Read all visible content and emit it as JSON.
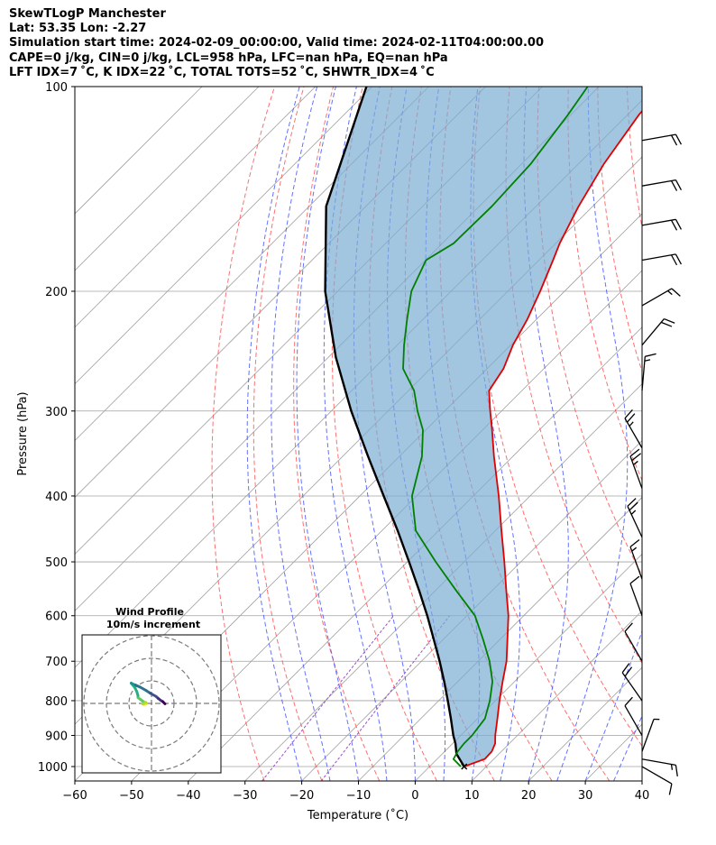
{
  "header": {
    "line1": "SkewTLogP Manchester",
    "line2": "Lat: 53.35   Lon: -2.27",
    "line3": "Simulation start time: 2024-02-09_00:00:00, Valid time: 2024-02-11T04:00:00.00",
    "line4": "CAPE=0 j/kg, CIN=0 j/kg, LCL=958 hPa, LFC=nan hPa, EQ=nan hPa",
    "line5": "LFT IDX=7 ˚C, K IDX=22 ˚C, TOTAL TOTS=52 ˚C, SHWTR_IDX=4 ˚C"
  },
  "colors": {
    "temperature": "#e00000",
    "dewpoint": "#008000",
    "parcel": "#000000",
    "cape_fill": "#7aadd3",
    "dry_adiabat": "#ff4a4a",
    "moist_adiabat": "#3b4dff",
    "mixing_ratio": "#9a4fc8",
    "isotherm": "#a0a0a0"
  },
  "chart_data": [
    {
      "type": "line",
      "title": "SkewTLogP Manchester",
      "xlabel": "Temperature (˚C)",
      "ylabel": "Pressure (hPa)",
      "xlim": [
        -60,
        40
      ],
      "ylim": [
        1050,
        100
      ],
      "yscale": "log",
      "skew": 45,
      "xticks": [
        -60,
        -50,
        -40,
        -30,
        -20,
        -10,
        0,
        10,
        20,
        30,
        40
      ],
      "yticks": [
        1000,
        900,
        800,
        700,
        600,
        500,
        400,
        300,
        200,
        100
      ],
      "series": [
        {
          "name": "Temperature",
          "p": [
            1000,
            975,
            950,
            925,
            900,
            850,
            800,
            750,
            700,
            650,
            600,
            550,
            500,
            450,
            400,
            350,
            320,
            300,
            280,
            260,
            240,
            220,
            200,
            180,
            170,
            150,
            130,
            110,
            100
          ],
          "t": [
            6.1,
            8.4,
            8.3,
            7.5,
            6.1,
            3.5,
            0.7,
            -2.1,
            -5.0,
            -8.7,
            -12.7,
            -17.6,
            -22.9,
            -28.9,
            -35.5,
            -43.3,
            -48.3,
            -52.0,
            -55.8,
            -57.1,
            -59.6,
            -61.6,
            -64.3,
            -67.5,
            -69.3,
            -72.5,
            -75.5,
            -78.0,
            -78.7
          ]
        },
        {
          "name": "Dewpoint",
          "p": [
            1000,
            975,
            950,
            925,
            900,
            850,
            800,
            750,
            700,
            650,
            600,
            550,
            500,
            450,
            400,
            350,
            320,
            300,
            280,
            260,
            240,
            220,
            200,
            180,
            170,
            150,
            130,
            110,
            100
          ],
          "t": [
            5.5,
            2.9,
            2.3,
            2.0,
            2.0,
            1.3,
            -1.0,
            -3.9,
            -8.0,
            -13.0,
            -18.6,
            -26.5,
            -35.0,
            -44.0,
            -50.8,
            -56.0,
            -60.5,
            -64.8,
            -69.0,
            -74.8,
            -78.8,
            -82.8,
            -87.0,
            -89.9,
            -88.0,
            -87.8,
            -88.4,
            -90.5,
            -92.0
          ]
        },
        {
          "name": "Parcel",
          "p": [
            1000,
            958,
            925,
            900,
            850,
            800,
            750,
            700,
            650,
            600,
            550,
            500,
            450,
            400,
            350,
            300,
            250,
            200,
            150,
            100
          ],
          "t": [
            6.1,
            2.5,
            0.5,
            -1.3,
            -4.7,
            -8.4,
            -12.4,
            -16.8,
            -21.7,
            -27.0,
            -33.0,
            -39.7,
            -47.2,
            -55.8,
            -65.5,
            -76.5,
            -88.7,
            -102.2,
            -117.0,
            -131.0
          ]
        }
      ],
      "annotations": []
    },
    {
      "type": "scatter",
      "title": "Wind Profile",
      "subtitle": "10m/s increment",
      "ring_step_ms": 10,
      "points": [
        {
          "u": 6,
          "v": -0.2
        },
        {
          "u": 5,
          "v": 0.8
        },
        {
          "u": 4,
          "v": 1.4
        },
        {
          "u": 3,
          "v": 2.2
        },
        {
          "u": 2,
          "v": 3.1
        },
        {
          "u": -0.5,
          "v": 4.5
        },
        {
          "u": -2.5,
          "v": 5.8
        },
        {
          "u": -5,
          "v": 7.2
        },
        {
          "u": -7,
          "v": 8.1
        },
        {
          "u": -8.5,
          "v": 8.7
        },
        {
          "u": -9,
          "v": 9.0
        },
        {
          "u": -7.5,
          "v": 7.2
        },
        {
          "u": -6.5,
          "v": 5.2
        },
        {
          "u": -6,
          "v": 3.4
        },
        {
          "u": -6,
          "v": 2.6
        },
        {
          "u": -3.9,
          "v": 1.0
        },
        {
          "u": -2.5,
          "v": 0.4
        },
        {
          "u": -3.9,
          "v": -0.2
        },
        {
          "u": -3.4,
          "v": -0.5
        },
        {
          "u": -2.3,
          "v": -0.3
        }
      ]
    },
    {
      "type": "barbs",
      "name": "Wind barbs",
      "p": [
        120,
        140,
        160,
        180,
        210,
        240,
        280,
        340,
        390,
        460,
        530,
        600,
        700,
        800,
        900,
        950,
        975,
        1000
      ],
      "speed_kt": [
        20,
        20,
        20,
        20,
        15,
        20,
        15,
        25,
        25,
        25,
        15,
        10,
        10,
        20,
        10,
        5,
        15,
        10
      ],
      "direction_deg": [
        80,
        80,
        80,
        80,
        60,
        40,
        5,
        330,
        340,
        335,
        340,
        340,
        330,
        325,
        330,
        20,
        100,
        120
      ]
    }
  ]
}
